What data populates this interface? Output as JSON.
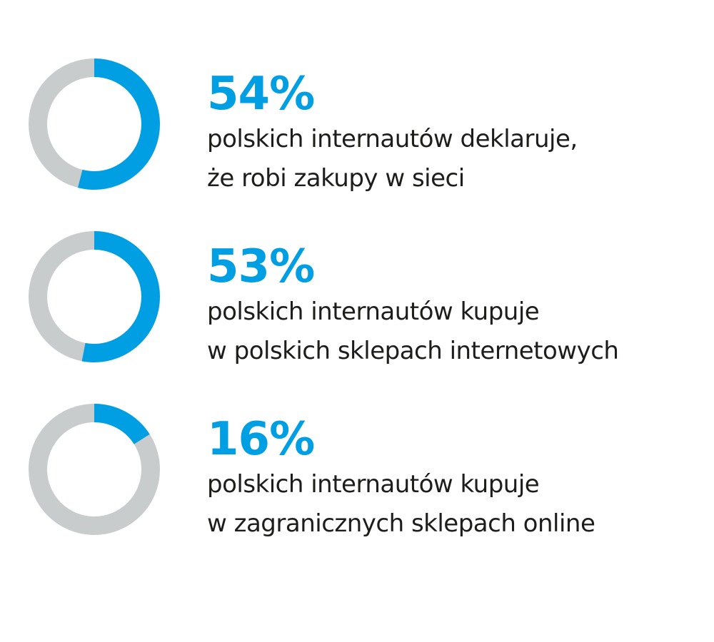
{
  "colors": {
    "accent": "#009fe3",
    "track": "#c8cccc",
    "text": "#1d1d1b"
  },
  "chart_data": {
    "type": "pie",
    "categories": [
      "polskich internautów deklaruje, że robi zakupy w sieci",
      "polskich internautów kupuje w polskich sklepach internetowych",
      "polskich internautów kupuje w zagranicznych sklepach online"
    ],
    "values": [
      54,
      53,
      16
    ],
    "unit": "%"
  },
  "stats": [
    {
      "value_label": "54%",
      "value": 54,
      "lines": [
        "polskich internautów deklaruje,",
        "że robi zakupy w sieci"
      ]
    },
    {
      "value_label": "53%",
      "value": 53,
      "lines": [
        "polskich internautów kupuje",
        "w polskich sklepach internetowych"
      ]
    },
    {
      "value_label": "16%",
      "value": 16,
      "lines": [
        "polskich internautów kupuje",
        "w zagranicznych sklepach online"
      ]
    }
  ]
}
